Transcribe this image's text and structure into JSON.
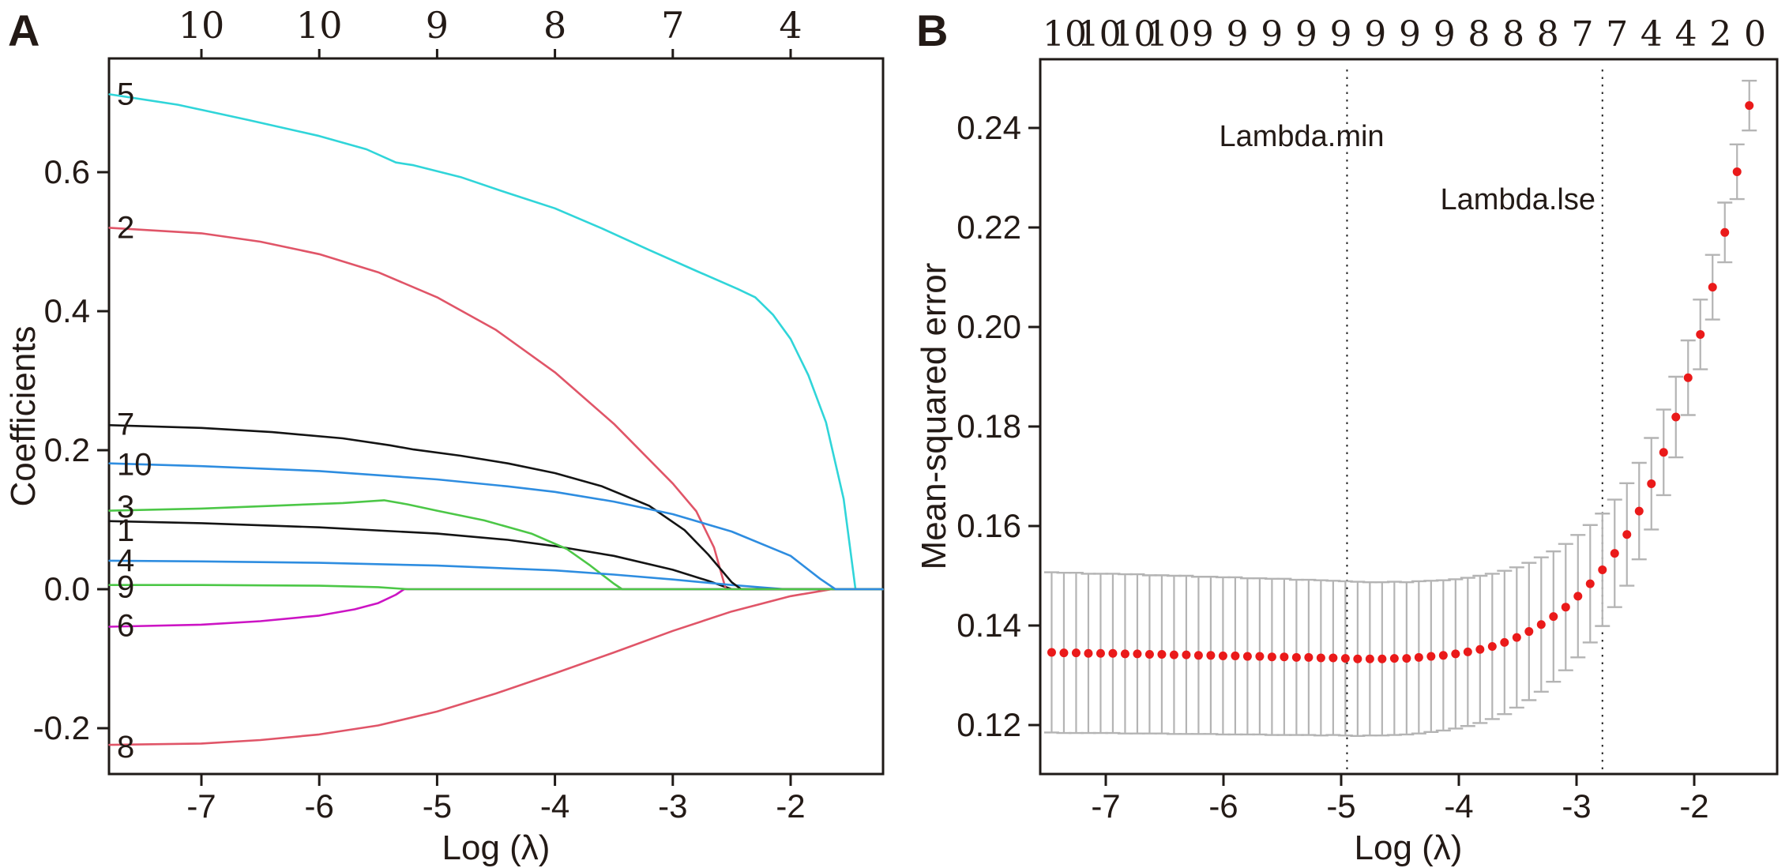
{
  "figure": {
    "panel_a_label": "A",
    "panel_b_label": "B",
    "text_color": "#231a16",
    "colors": {
      "black": "#141414",
      "red": "#e05568",
      "green": "#4cc747",
      "blue": "#2e8de0",
      "cyan": "#30d5d9",
      "magenta": "#cc14c4",
      "cv_dot_red": "#ea1a1a",
      "error_bar_gray": "#b4b4b4",
      "axis": "#1f1a17"
    }
  },
  "chart_data": [
    {
      "panel": "A",
      "type": "line",
      "xlabel": "Log (λ)",
      "ylabel": "Coefficients",
      "xlim": [
        -7.78,
        -1.22
      ],
      "ylim": [
        -0.266,
        0.764
      ],
      "grid": false,
      "x_tick_values": [
        -7,
        -6,
        -5,
        -4,
        -3,
        -2
      ],
      "x_tick_labels": [
        "-7",
        "-6",
        "-5",
        "-4",
        "-3",
        "-2"
      ],
      "y_tick_values": [
        0.6,
        0.4,
        0.2,
        0.0,
        -0.2
      ],
      "y_tick_labels": [
        "0.6",
        "0.4",
        "0.2",
        "0.0",
        "-0.2"
      ],
      "top_axis_labels": [
        "10",
        "10",
        "9",
        "8",
        "7",
        "4"
      ],
      "curve_labels": [
        {
          "text": "5",
          "y": 0.712
        },
        {
          "text": "2",
          "y": 0.52
        },
        {
          "text": "7",
          "y": 0.237
        },
        {
          "text": "10",
          "y": 0.179
        },
        {
          "text": "3",
          "y": 0.118
        },
        {
          "text": "1",
          "y": 0.084
        },
        {
          "text": "4",
          "y": 0.041
        },
        {
          "text": "9",
          "y": 0.003
        },
        {
          "text": "6",
          "y": -0.053
        },
        {
          "text": "8",
          "y": -0.227
        }
      ],
      "series": [
        {
          "name": "1",
          "color": "black",
          "points": [
            [
              -7.78,
              0.098
            ],
            [
              -7.0,
              0.095
            ],
            [
              -6.0,
              0.089
            ],
            [
              -5.0,
              0.08
            ],
            [
              -4.4,
              0.071
            ],
            [
              -4.0,
              0.062
            ],
            [
              -3.5,
              0.048
            ],
            [
              -3.0,
              0.028
            ],
            [
              -2.7,
              0.012
            ],
            [
              -2.5,
              0.0
            ],
            [
              -1.22,
              0.0
            ]
          ]
        },
        {
          "name": "2",
          "color": "red",
          "points": [
            [
              -7.78,
              0.52
            ],
            [
              -7.0,
              0.512
            ],
            [
              -6.5,
              0.5
            ],
            [
              -6.0,
              0.482
            ],
            [
              -5.5,
              0.456
            ],
            [
              -5.0,
              0.42
            ],
            [
              -4.5,
              0.373
            ],
            [
              -4.0,
              0.312
            ],
            [
              -3.5,
              0.238
            ],
            [
              -3.0,
              0.152
            ],
            [
              -2.8,
              0.112
            ],
            [
              -2.65,
              0.06
            ],
            [
              -2.55,
              0.0
            ],
            [
              -1.22,
              0.0
            ]
          ]
        },
        {
          "name": "3",
          "color": "green",
          "points": [
            [
              -7.78,
              0.113
            ],
            [
              -7.0,
              0.116
            ],
            [
              -6.4,
              0.12
            ],
            [
              -5.8,
              0.124
            ],
            [
              -5.45,
              0.128
            ],
            [
              -5.25,
              0.122
            ],
            [
              -5.0,
              0.113
            ],
            [
              -4.6,
              0.099
            ],
            [
              -4.2,
              0.08
            ],
            [
              -3.9,
              0.058
            ],
            [
              -3.7,
              0.034
            ],
            [
              -3.5,
              0.008
            ],
            [
              -3.43,
              0.0
            ],
            [
              -1.22,
              0.0
            ]
          ]
        },
        {
          "name": "4",
          "color": "blue",
          "points": [
            [
              -7.78,
              0.041
            ],
            [
              -7.0,
              0.04
            ],
            [
              -6.0,
              0.038
            ],
            [
              -5.0,
              0.034
            ],
            [
              -4.0,
              0.027
            ],
            [
              -3.5,
              0.021
            ],
            [
              -3.0,
              0.014
            ],
            [
              -2.5,
              0.006
            ],
            [
              -2.05,
              0.0
            ],
            [
              -1.22,
              0.0
            ]
          ]
        },
        {
          "name": "5",
          "color": "cyan",
          "points": [
            [
              -7.78,
              0.712
            ],
            [
              -7.2,
              0.697
            ],
            [
              -6.6,
              0.675
            ],
            [
              -6.0,
              0.652
            ],
            [
              -5.6,
              0.633
            ],
            [
              -5.35,
              0.614
            ],
            [
              -5.2,
              0.61
            ],
            [
              -4.8,
              0.593
            ],
            [
              -4.4,
              0.57
            ],
            [
              -4.0,
              0.548
            ],
            [
              -3.6,
              0.519
            ],
            [
              -3.2,
              0.488
            ],
            [
              -2.8,
              0.458
            ],
            [
              -2.45,
              0.432
            ],
            [
              -2.3,
              0.42
            ],
            [
              -2.15,
              0.395
            ],
            [
              -2.0,
              0.36
            ],
            [
              -1.85,
              0.308
            ],
            [
              -1.7,
              0.24
            ],
            [
              -1.55,
              0.13
            ],
            [
              -1.45,
              0.0
            ],
            [
              -1.22,
              0.0
            ]
          ]
        },
        {
          "name": "6",
          "color": "magenta",
          "points": [
            [
              -7.78,
              -0.054
            ],
            [
              -7.0,
              -0.051
            ],
            [
              -6.5,
              -0.046
            ],
            [
              -6.0,
              -0.038
            ],
            [
              -5.7,
              -0.029
            ],
            [
              -5.5,
              -0.02
            ],
            [
              -5.35,
              -0.008
            ],
            [
              -5.28,
              0.0
            ],
            [
              -1.22,
              0.0
            ]
          ]
        },
        {
          "name": "7",
          "color": "black",
          "points": [
            [
              -7.78,
              0.236
            ],
            [
              -7.0,
              0.232
            ],
            [
              -6.4,
              0.226
            ],
            [
              -5.8,
              0.217
            ],
            [
              -5.4,
              0.207
            ],
            [
              -5.2,
              0.201
            ],
            [
              -4.8,
              0.192
            ],
            [
              -4.4,
              0.181
            ],
            [
              -4.0,
              0.167
            ],
            [
              -3.6,
              0.148
            ],
            [
              -3.2,
              0.12
            ],
            [
              -2.9,
              0.085
            ],
            [
              -2.7,
              0.05
            ],
            [
              -2.5,
              0.01
            ],
            [
              -2.42,
              0.0
            ],
            [
              -1.22,
              0.0
            ]
          ]
        },
        {
          "name": "8",
          "color": "red",
          "points": [
            [
              -7.78,
              -0.224
            ],
            [
              -7.0,
              -0.222
            ],
            [
              -6.5,
              -0.217
            ],
            [
              -6.0,
              -0.209
            ],
            [
              -5.5,
              -0.196
            ],
            [
              -5.0,
              -0.176
            ],
            [
              -4.5,
              -0.15
            ],
            [
              -4.0,
              -0.121
            ],
            [
              -3.5,
              -0.091
            ],
            [
              -3.0,
              -0.06
            ],
            [
              -2.5,
              -0.032
            ],
            [
              -2.0,
              -0.01
            ],
            [
              -1.65,
              0.0
            ],
            [
              -1.22,
              0.0
            ]
          ]
        },
        {
          "name": "9",
          "color": "green",
          "points": [
            [
              -7.78,
              0.006
            ],
            [
              -7.0,
              0.006
            ],
            [
              -6.0,
              0.005
            ],
            [
              -5.5,
              0.003
            ],
            [
              -5.25,
              0.0
            ],
            [
              -1.22,
              0.0
            ]
          ]
        },
        {
          "name": "10",
          "color": "blue",
          "points": [
            [
              -7.78,
              0.181
            ],
            [
              -7.0,
              0.177
            ],
            [
              -6.0,
              0.17
            ],
            [
              -5.0,
              0.158
            ],
            [
              -4.4,
              0.148
            ],
            [
              -4.0,
              0.14
            ],
            [
              -3.5,
              0.126
            ],
            [
              -3.0,
              0.108
            ],
            [
              -2.5,
              0.083
            ],
            [
              -2.0,
              0.048
            ],
            [
              -1.75,
              0.015
            ],
            [
              -1.62,
              0.0
            ],
            [
              -1.22,
              0.0
            ]
          ]
        }
      ]
    },
    {
      "panel": "B",
      "type": "scatter",
      "xlabel": "Log (λ)",
      "ylabel": "Mean-squared error",
      "xlim": [
        -7.56,
        -1.3
      ],
      "ylim": [
        0.11,
        0.254
      ],
      "grid": false,
      "x_tick_values": [
        -7,
        -6,
        -5,
        -4,
        -3,
        -2
      ],
      "x_tick_labels": [
        "-7",
        "-6",
        "-5",
        "-4",
        "-3",
        "-2"
      ],
      "y_tick_values": [
        0.12,
        0.14,
        0.16,
        0.18,
        0.2,
        0.22,
        0.24
      ],
      "y_tick_labels": [
        "0.12",
        "0.14",
        "0.16",
        "0.18",
        "0.20",
        "0.22",
        "0.24"
      ],
      "top_axis_labels": [
        "10",
        "10",
        "10",
        "10",
        "9",
        "9",
        "9",
        "9",
        "9",
        "9",
        "9",
        "9",
        "8",
        "8",
        "8",
        "7",
        "7",
        "4",
        "4",
        "2",
        "0"
      ],
      "vlines": [
        {
          "x": -4.95,
          "label": "Lambda.min",
          "label_x": -5.33,
          "label_y": 0.2365,
          "anchor": "middle"
        },
        {
          "x": -2.78,
          "label": "Lambda.lse",
          "label_x": -2.84,
          "label_y": 0.2237,
          "anchor": "end"
        }
      ],
      "points": {
        "x_start": -7.46,
        "x_step": 0.104,
        "mse": [
          0.1346,
          0.1345,
          0.1345,
          0.1344,
          0.1344,
          0.1344,
          0.1343,
          0.1343,
          0.1342,
          0.1342,
          0.1341,
          0.1341,
          0.134,
          0.134,
          0.1339,
          0.1339,
          0.1338,
          0.1338,
          0.1337,
          0.1337,
          0.1336,
          0.1336,
          0.1335,
          0.1335,
          0.1334,
          0.1333,
          0.1333,
          0.1333,
          0.1334,
          0.1334,
          0.1336,
          0.1338,
          0.134,
          0.1343,
          0.1347,
          0.1352,
          0.1358,
          0.1366,
          0.1376,
          0.1388,
          0.1402,
          0.1418,
          0.1437,
          0.1459,
          0.1484,
          0.1512,
          0.1545,
          0.1583,
          0.163,
          0.1685,
          0.1748,
          0.1819,
          0.1898,
          0.1985,
          0.208,
          0.219,
          0.2312,
          0.2445
        ],
        "se": [
          0.0161,
          0.0161,
          0.0161,
          0.016,
          0.016,
          0.016,
          0.016,
          0.016,
          0.0159,
          0.0159,
          0.0159,
          0.0159,
          0.0158,
          0.0158,
          0.0158,
          0.0158,
          0.0157,
          0.0157,
          0.0157,
          0.0157,
          0.0156,
          0.0156,
          0.0156,
          0.0155,
          0.0155,
          0.0155,
          0.0154,
          0.0154,
          0.0154,
          0.0153,
          0.0153,
          0.0152,
          0.0151,
          0.015,
          0.0149,
          0.0148,
          0.0146,
          0.0144,
          0.0141,
          0.0138,
          0.0135,
          0.0131,
          0.0127,
          0.0123,
          0.0118,
          0.0113,
          0.0108,
          0.0103,
          0.0097,
          0.0092,
          0.0086,
          0.0081,
          0.0075,
          0.007,
          0.0065,
          0.006,
          0.0055,
          0.005
        ]
      }
    }
  ]
}
